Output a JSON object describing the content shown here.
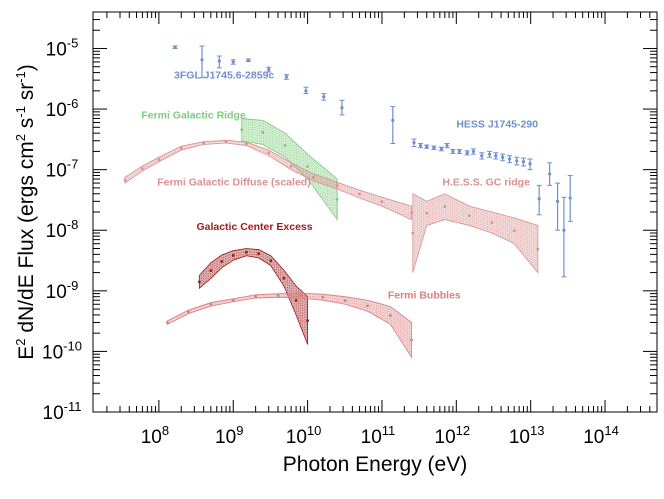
{
  "chart_data": {
    "type": "scatter",
    "xlabel": "Photon Energy (eV)",
    "ylabel": "E² dN/dE Flux (ergs cm² s⁻¹ sr⁻¹)",
    "ylabel_parts": {
      "a": "E",
      "b": "2",
      "c": " dN/dE Flux (ergs cm",
      "d": "2",
      "e": " s",
      "f": "-1",
      "g": " sr",
      "h": "-1",
      "i": ")"
    },
    "x_scale": "log",
    "y_scale": "log",
    "xlim": [
      13000000.0,
      500000000000000.0
    ],
    "ylim": [
      1e-11,
      4e-05
    ],
    "grid": false,
    "x_ticks": [
      {
        "value": 100000000.0,
        "base": "10",
        "exp": "8"
      },
      {
        "value": 1000000000.0,
        "base": "10",
        "exp": "9"
      },
      {
        "value": 10000000000.0,
        "base": "10",
        "exp": "10"
      },
      {
        "value": 100000000000.0,
        "base": "10",
        "exp": "11"
      },
      {
        "value": 1000000000000.0,
        "base": "10",
        "exp": "12"
      },
      {
        "value": 10000000000000.0,
        "base": "10",
        "exp": "13"
      },
      {
        "value": 100000000000000.0,
        "base": "10",
        "exp": "14"
      }
    ],
    "y_ticks": [
      {
        "value": 1e-05,
        "base": "10",
        "exp": "-5"
      },
      {
        "value": 1e-06,
        "base": "10",
        "exp": "-6"
      },
      {
        "value": 1e-07,
        "base": "10",
        "exp": "-7"
      },
      {
        "value": 1e-08,
        "base": "10",
        "exp": "-8"
      },
      {
        "value": 1e-09,
        "base": "10",
        "exp": "-9"
      },
      {
        "value": 1e-10,
        "base": "10",
        "exp": "-10"
      },
      {
        "value": 1e-11,
        "base": "10",
        "exp": "-11"
      }
    ],
    "series": [
      {
        "name": "3FGL J1745.6-2859c",
        "kind": "points",
        "color": "#6f8fcf",
        "label_at": {
          "x": 160000000.0,
          "y": 3.2e-06
        },
        "points": [
          {
            "x": 165000000.0,
            "y": 1.05e-05,
            "lo": 1e-05,
            "hi": 1.1e-05
          },
          {
            "x": 380000000.0,
            "y": 6.5e-06,
            "lo": 3.3e-06,
            "hi": 1.1e-05
          },
          {
            "x": 650000000.0,
            "y": 6.2e-06,
            "lo": 4.8e-06,
            "hi": 7.5e-06
          },
          {
            "x": 1000000000.0,
            "y": 6e-06,
            "lo": 5.5e-06,
            "hi": 6.5e-06
          },
          {
            "x": 1600000000.0,
            "y": 6.4e-06,
            "lo": 6.1e-06,
            "hi": 6.7e-06
          },
          {
            "x": 3000000000.0,
            "y": 4.5e-06,
            "lo": 4.1e-06,
            "hi": 4.9e-06
          },
          {
            "x": 5200000000.0,
            "y": 3.4e-06,
            "lo": 3.1e-06,
            "hi": 3.7e-06
          },
          {
            "x": 9500000000.0,
            "y": 2e-06,
            "lo": 1.8e-06,
            "hi": 2.3e-06
          },
          {
            "x": 16500000000.0,
            "y": 1.6e-06,
            "lo": 1.4e-06,
            "hi": 1.8e-06
          },
          {
            "x": 29000000000.0,
            "y": 1.05e-06,
            "lo": 8e-07,
            "hi": 1.4e-06
          },
          {
            "x": 140000000000.0,
            "y": 6.5e-07,
            "lo": 2.7e-07,
            "hi": 1.1e-06
          }
        ]
      },
      {
        "name": "HESS J1745-290",
        "kind": "points",
        "color": "#6f8fcf",
        "label_at": {
          "x": 1000000000000.0,
          "y": 5e-07
        },
        "points": [
          {
            "x": 270000000000.0,
            "y": 2.8e-07,
            "lo": 2.4e-07,
            "hi": 3.2e-07
          },
          {
            "x": 330000000000.0,
            "y": 2.5e-07,
            "lo": 2.3e-07,
            "hi": 2.7e-07
          },
          {
            "x": 400000000000.0,
            "y": 2.4e-07,
            "lo": 2.25e-07,
            "hi": 2.55e-07
          },
          {
            "x": 500000000000.0,
            "y": 2.3e-07,
            "lo": 2.15e-07,
            "hi": 2.45e-07
          },
          {
            "x": 630000000000.0,
            "y": 2.2e-07,
            "lo": 2.05e-07,
            "hi": 2.35e-07
          },
          {
            "x": 750000000000.0,
            "y": 2.5e-07,
            "lo": 2.3e-07,
            "hi": 2.7e-07
          },
          {
            "x": 900000000000.0,
            "y": 2e-07,
            "lo": 1.85e-07,
            "hi": 2.15e-07
          },
          {
            "x": 1100000000000.0,
            "y": 2e-07,
            "lo": 1.85e-07,
            "hi": 2.15e-07
          },
          {
            "x": 1400000000000.0,
            "y": 1.9e-07,
            "lo": 1.75e-07,
            "hi": 2.05e-07
          },
          {
            "x": 1700000000000.0,
            "y": 2e-07,
            "lo": 1.8e-07,
            "hi": 2.2e-07
          },
          {
            "x": 2200000000000.0,
            "y": 1.7e-07,
            "lo": 1.5e-07,
            "hi": 1.9e-07
          },
          {
            "x": 2800000000000.0,
            "y": 1.8e-07,
            "lo": 1.6e-07,
            "hi": 2e-07
          },
          {
            "x": 3400000000000.0,
            "y": 1.7e-07,
            "lo": 1.5e-07,
            "hi": 1.9e-07
          },
          {
            "x": 4200000000000.0,
            "y": 1.6e-07,
            "lo": 1.4e-07,
            "hi": 1.8e-07
          },
          {
            "x": 5200000000000.0,
            "y": 1.5e-07,
            "lo": 1.3e-07,
            "hi": 1.7e-07
          },
          {
            "x": 6500000000000.0,
            "y": 1.4e-07,
            "lo": 1.2e-07,
            "hi": 1.6e-07
          },
          {
            "x": 8000000000000.0,
            "y": 1.35e-07,
            "lo": 1.15e-07,
            "hi": 1.55e-07
          },
          {
            "x": 9800000000000.0,
            "y": 1.25e-07,
            "lo": 1e-07,
            "hi": 1.5e-07
          },
          {
            "x": 13000000000000.0,
            "y": 3.3e-08,
            "lo": 1.8e-08,
            "hi": 5.5e-08
          },
          {
            "x": 18000000000000.0,
            "y": 8.5e-08,
            "lo": 5.5e-08,
            "hi": 1.3e-07
          },
          {
            "x": 23000000000000.0,
            "y": 3e-08,
            "lo": 1e-08,
            "hi": 6e-08
          },
          {
            "x": 28000000000000.0,
            "y": 1e-08,
            "lo": 1.7e-09,
            "hi": 3.5e-08
          },
          {
            "x": 34000000000000.0,
            "y": 3.4e-08,
            "lo": 1.4e-08,
            "hi": 8e-08
          }
        ]
      },
      {
        "name": "Fermi Galactic Ridge",
        "kind": "band",
        "color": "#7ecb7e",
        "label_at": {
          "x": 58000000.0,
          "y": 7e-07
        },
        "band": [
          {
            "x": 1300000000.0,
            "lo": 3e-07,
            "hi": 7e-07
          },
          {
            "x": 2500000000.0,
            "lo": 2.6e-07,
            "hi": 6.5e-07
          },
          {
            "x": 5000000000.0,
            "lo": 1.6e-07,
            "hi": 4e-07
          },
          {
            "x": 10000000000.0,
            "lo": 7e-08,
            "hi": 1.8e-07
          },
          {
            "x": 25000000000.0,
            "lo": 1.5e-08,
            "hi": 7e-08
          }
        ]
      },
      {
        "name": "Fermi Galactic Diffuse (scaled)",
        "kind": "band",
        "color": "#d99191",
        "label_at": {
          "x": 95000000.0,
          "y": 5.5e-08
        },
        "band": [
          {
            "x": 35000000.0,
            "lo": 6e-08,
            "hi": 7.5e-08
          },
          {
            "x": 60000000.0,
            "lo": 9.5e-08,
            "hi": 1.15e-07
          },
          {
            "x": 100000000.0,
            "lo": 1.35e-07,
            "hi": 1.6e-07
          },
          {
            "x": 200000000.0,
            "lo": 2.1e-07,
            "hi": 2.45e-07
          },
          {
            "x": 400000000.0,
            "lo": 2.6e-07,
            "hi": 2.9e-07
          },
          {
            "x": 800000000.0,
            "lo": 2.75e-07,
            "hi": 3.05e-07
          },
          {
            "x": 1500000000.0,
            "lo": 2.5e-07,
            "hi": 2.85e-07
          },
          {
            "x": 3000000000.0,
            "lo": 1.7e-07,
            "hi": 2.1e-07
          },
          {
            "x": 6000000000.0,
            "lo": 1e-07,
            "hi": 1.3e-07
          },
          {
            "x": 12000000000.0,
            "lo": 6.5e-08,
            "hi": 8.5e-08
          },
          {
            "x": 25000000000.0,
            "lo": 4.8e-08,
            "hi": 6.2e-08
          },
          {
            "x": 50000000000.0,
            "lo": 3.4e-08,
            "hi": 4.6e-08
          },
          {
            "x": 100000000000.0,
            "lo": 2.5e-08,
            "hi": 3.5e-08
          },
          {
            "x": 250000000000.0,
            "lo": 1.5e-08,
            "hi": 2.5e-08
          }
        ]
      },
      {
        "name": "H.E.S.S. GC ridge",
        "kind": "band",
        "color": "#d99191",
        "label_at": {
          "x": 650000000000.0,
          "y": 5.5e-08
        },
        "band": [
          {
            "x": 260000000000.0,
            "lo": 2e-09,
            "hi": 4e-08
          },
          {
            "x": 400000000000.0,
            "lo": 1.2e-08,
            "hi": 3e-08
          },
          {
            "x": 700000000000.0,
            "lo": 1.5e-08,
            "hi": 4e-08
          },
          {
            "x": 1500000000000.0,
            "lo": 1.2e-08,
            "hi": 2.5e-08
          },
          {
            "x": 3000000000000.0,
            "lo": 9e-09,
            "hi": 2e-08
          },
          {
            "x": 6000000000000.0,
            "lo": 6e-09,
            "hi": 1.6e-08
          },
          {
            "x": 12500000000000.0,
            "lo": 2e-09,
            "hi": 1.2e-08
          }
        ]
      },
      {
        "name": "Galactic Center Excess",
        "kind": "band",
        "color": "#9e1b1b",
        "label_at": {
          "x": 320000000.0,
          "y": 1e-08
        },
        "band": [
          {
            "x": 350000000.0,
            "lo": 1.1e-09,
            "hi": 1.8e-09
          },
          {
            "x": 500000000.0,
            "lo": 1.6e-09,
            "hi": 2.9e-09
          },
          {
            "x": 700000000.0,
            "lo": 2.4e-09,
            "hi": 3.9e-09
          },
          {
            "x": 1000000000.0,
            "lo": 3.2e-09,
            "hi": 4.6e-09
          },
          {
            "x": 1500000000.0,
            "lo": 3.8e-09,
            "hi": 5e-09
          },
          {
            "x": 2200000000.0,
            "lo": 3.5e-09,
            "hi": 4.8e-09
          },
          {
            "x": 3200000000.0,
            "lo": 2.6e-09,
            "hi": 3.8e-09
          },
          {
            "x": 4800000000.0,
            "lo": 1.2e-09,
            "hi": 2.2e-09
          },
          {
            "x": 7000000000.0,
            "lo": 4e-10,
            "hi": 1.2e-09
          },
          {
            "x": 10000000000.0,
            "lo": 1.3e-10,
            "hi": 8e-10
          }
        ]
      },
      {
        "name": "Fermi Bubbles",
        "kind": "band",
        "color": "#d97f7f",
        "label_at": {
          "x": 120000000000.0,
          "y": 7.5e-10
        },
        "band": [
          {
            "x": 130000000.0,
            "lo": 2.8e-10,
            "hi": 3.2e-10
          },
          {
            "x": 250000000.0,
            "lo": 4.2e-10,
            "hi": 4.8e-10
          },
          {
            "x": 500000000.0,
            "lo": 5.6e-10,
            "hi": 6.4e-10
          },
          {
            "x": 1000000000.0,
            "lo": 6.6e-10,
            "hi": 7.4e-10
          },
          {
            "x": 2000000000.0,
            "lo": 7.6e-10,
            "hi": 8.6e-10
          },
          {
            "x": 4000000000.0,
            "lo": 7.8e-10,
            "hi": 9e-10
          },
          {
            "x": 8000000000.0,
            "lo": 7.6e-10,
            "hi": 9.2e-10
          },
          {
            "x": 16000000000.0,
            "lo": 7e-10,
            "hi": 8.8e-10
          },
          {
            "x": 32000000000.0,
            "lo": 6e-10,
            "hi": 8e-10
          },
          {
            "x": 64000000000.0,
            "lo": 4.6e-10,
            "hi": 7e-10
          },
          {
            "x": 130000000000.0,
            "lo": 2.8e-10,
            "hi": 5.5e-10
          },
          {
            "x": 250000000000.0,
            "lo": 8e-11,
            "hi": 3e-10
          }
        ]
      }
    ]
  }
}
